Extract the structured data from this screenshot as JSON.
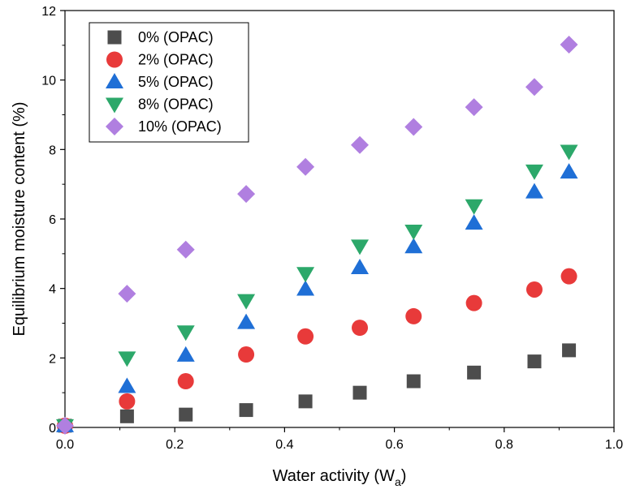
{
  "chart_data": {
    "type": "scatter",
    "xlabel": "Water activity (W",
    "xlabel_sub": "a",
    "xlabel_end": ")",
    "ylabel": "Equilibrium moisture content (%)",
    "xlim": [
      0.0,
      1.0
    ],
    "ylim": [
      0,
      12
    ],
    "xticks": [
      "0.0",
      "0.2",
      "0.4",
      "0.6",
      "0.8",
      "1.0"
    ],
    "yticks": [
      "0",
      "2",
      "4",
      "6",
      "8",
      "10",
      "12"
    ],
    "grid": false,
    "legend_position": "top-left",
    "x": [
      0.0,
      0.113,
      0.22,
      0.33,
      0.438,
      0.537,
      0.635,
      0.745,
      0.855,
      0.918
    ],
    "series": [
      {
        "name": "0% (OPAC)",
        "marker": "square",
        "color": "#4d4d4d",
        "values": [
          0.05,
          0.32,
          0.37,
          0.5,
          0.75,
          1.0,
          1.33,
          1.58,
          1.9,
          2.22
        ]
      },
      {
        "name": "2% (OPAC)",
        "marker": "circle",
        "color": "#e83a3a",
        "values": [
          0.05,
          0.75,
          1.33,
          2.1,
          2.62,
          2.87,
          3.2,
          3.58,
          3.97,
          4.35
        ]
      },
      {
        "name": "5% (OPAC)",
        "marker": "triangle-up",
        "color": "#1f6fd6",
        "values": [
          0.05,
          1.18,
          2.08,
          3.02,
          3.98,
          4.6,
          5.2,
          5.88,
          6.78,
          7.35
        ]
      },
      {
        "name": "8% (OPAC)",
        "marker": "triangle-down",
        "color": "#2ca86a",
        "values": [
          0.05,
          2.0,
          2.75,
          3.65,
          4.43,
          5.22,
          5.65,
          6.38,
          7.38,
          7.95
        ]
      },
      {
        "name": "10% (OPAC)",
        "marker": "diamond",
        "color": "#b07fe0",
        "values": [
          0.05,
          3.85,
          5.12,
          6.72,
          7.5,
          8.13,
          8.65,
          9.22,
          9.8,
          11.02
        ]
      }
    ]
  }
}
